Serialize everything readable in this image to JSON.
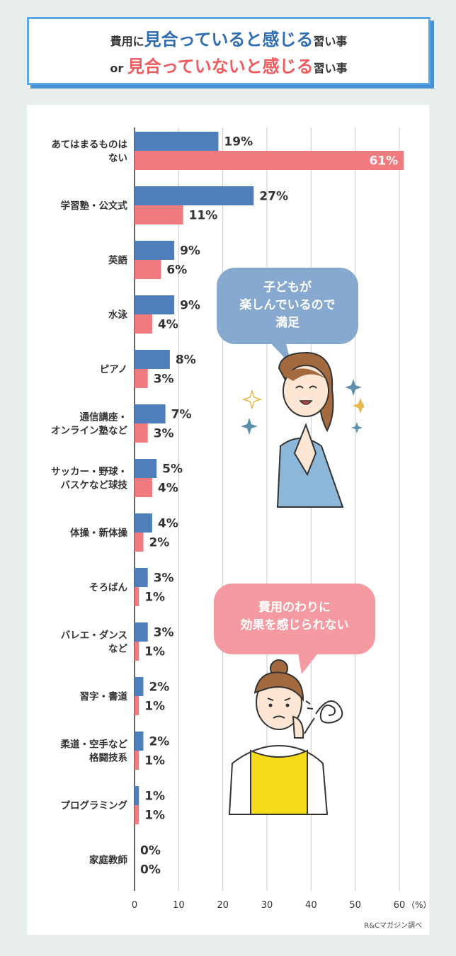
{
  "header": {
    "line1_prefix": "費用に",
    "line1_emphasis": "見合っていると感じる",
    "line1_suffix": "習い事",
    "line2_prefix": "or ",
    "line2_emphasis": "見合っていないと感じる",
    "line2_suffix": "習い事"
  },
  "bubbles": {
    "satisfied": [
      "子どもが",
      "楽しんでいるので",
      "満足"
    ],
    "dissatisfied": [
      "費用のわりに",
      "効果を感じられない"
    ]
  },
  "source": "R&Cマガジン調べ",
  "colors": {
    "worth": "#4f7fba",
    "not_worth": "#f07a7d",
    "title_blue": "#2e6db0",
    "title_red": "#ef5a5e",
    "frame": "#5aa6e6"
  },
  "chart_data": {
    "type": "bar",
    "orientation": "horizontal",
    "categories": [
      [
        "あてはまるものは",
        "ない"
      ],
      [
        "学習塾・公文式"
      ],
      [
        "英語"
      ],
      [
        "水泳"
      ],
      [
        "ピアノ"
      ],
      [
        "通信講座・",
        "オンライン塾など"
      ],
      [
        "サッカー・野球・",
        "バスケなど球技"
      ],
      [
        "体操・新体操"
      ],
      [
        "そろばん"
      ],
      [
        "バレエ・ダンス",
        "など"
      ],
      [
        "習字・書道"
      ],
      [
        "柔道・空手など",
        "格闘技系"
      ],
      [
        "プログラミング"
      ],
      [
        "家庭教師"
      ]
    ],
    "series": [
      {
        "values": [
          19,
          27,
          9,
          9,
          8,
          7,
          5,
          4,
          3,
          3,
          2,
          2,
          1,
          0
        ]
      },
      {
        "values": [
          61,
          11,
          6,
          4,
          3,
          3,
          4,
          2,
          1,
          1,
          1,
          1,
          1,
          0
        ]
      }
    ],
    "value_suffix": "%",
    "xlim": [
      0,
      60
    ],
    "xticks": [
      0,
      10,
      20,
      30,
      40,
      50,
      60
    ],
    "xunit": "（%）",
    "grid": true
  }
}
